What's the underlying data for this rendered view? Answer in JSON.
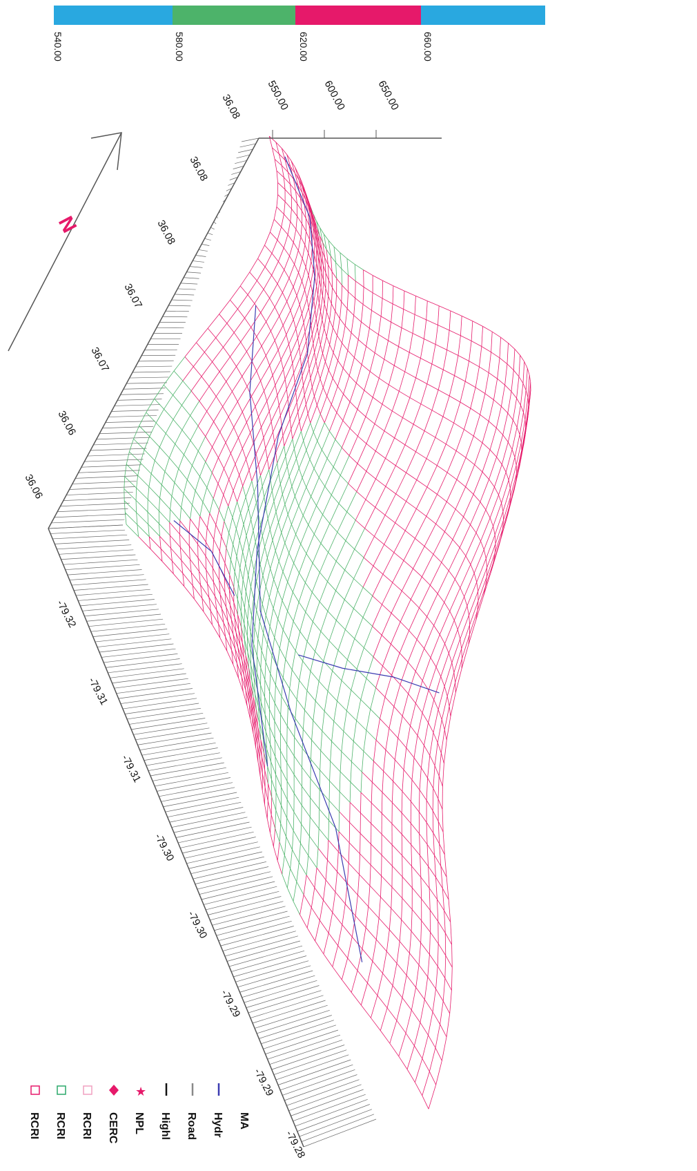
{
  "colorbar": {
    "segments": [
      {
        "color": "#29a8e0"
      },
      {
        "color": "#4db36a"
      },
      {
        "color": "#e6196a"
      },
      {
        "color": "#29a8e0"
      }
    ],
    "labels": [
      "540.00",
      "580.00",
      "620.00",
      "660.00"
    ]
  },
  "elevation_axis": {
    "ticks": [
      "550.00",
      "600.00",
      "650.00"
    ]
  },
  "lat_axis": {
    "ticks": [
      "36.08",
      "36.08",
      "36.08",
      "36.07",
      "36.07",
      "36.06",
      "36.06"
    ]
  },
  "lon_axis": {
    "ticks": [
      "-79.32",
      "-79.31",
      "-79.31",
      "-79.30",
      "-79.30",
      "-79.29",
      "-79.29",
      "-79.28"
    ]
  },
  "north_arrow": {
    "label": "N",
    "color": "#e6196a"
  },
  "legend": {
    "items": [
      {
        "label": "MA",
        "symbol": "none",
        "color": "#111111"
      },
      {
        "label": "Hydr",
        "symbol": "line",
        "color": "#3a3ab0"
      },
      {
        "label": "Road",
        "symbol": "line",
        "color": "#888888"
      },
      {
        "label": "Highl",
        "symbol": "line",
        "color": "#111111"
      },
      {
        "label": "NPL",
        "symbol": "star",
        "color": "#e6196a"
      },
      {
        "label": "CERC",
        "symbol": "diamond",
        "color": "#e6196a"
      },
      {
        "label": "RCRI",
        "symbol": "square",
        "color": "#f0a0c0"
      },
      {
        "label": "RCRI",
        "symbol": "square",
        "color": "#2aa86a"
      },
      {
        "label": "RCRI",
        "symbol": "square",
        "color": "#e6196a"
      }
    ]
  },
  "colors": {
    "low": "#29a8e0",
    "mid": "#4db36a",
    "high": "#e6196a",
    "stream": "#3a3ab0",
    "axis": "#555555"
  }
}
